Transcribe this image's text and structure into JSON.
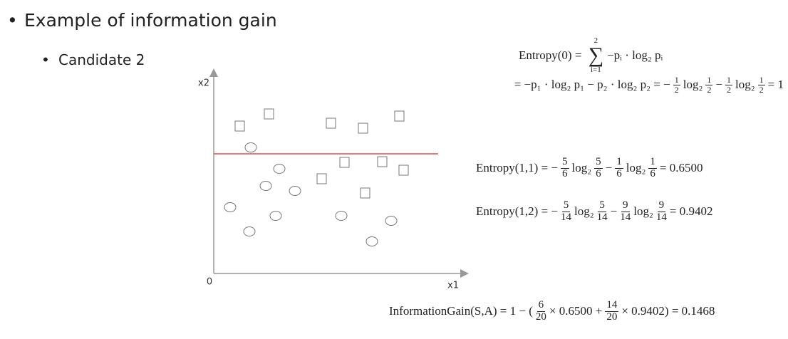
{
  "bullet": "Example of information gain",
  "sub_bullet": "Candidate 2",
  "plot": {
    "y_label": "x2",
    "x_label": "x1",
    "origin": "0"
  },
  "formulas": [
    {
      "parts": [
        "Entropy(0) = ",
        {
          "over": "∑",
          "top": "2",
          "bottom": "i=1"
        },
        "−pᵢ · log₂ pᵢ"
      ]
    },
    {
      "parts": [
        "= −p₁ · log₂ p₁ − p₂ · log₂ p₂ = −",
        {
          "num": "1",
          "den": "2"
        },
        "log₂",
        {
          "num": "1",
          "den": "2"
        },
        "−",
        {
          "num": "1",
          "den": "2"
        },
        "log₂",
        {
          "num": "1",
          "den": "2"
        },
        "= 1"
      ]
    },
    {
      "parts": [
        "Entropy(1,1) = −",
        {
          "num": "5",
          "den": "6"
        },
        "log₂",
        {
          "num": "5",
          "den": "6"
        },
        "−",
        {
          "num": "1",
          "den": "6"
        },
        "log₂",
        {
          "num": "1",
          "den": "6"
        },
        "= 0.6500"
      ]
    },
    {
      "parts": [
        "Entropy(1,2) = −",
        {
          "num": "5",
          "den": "14"
        },
        "log₂",
        {
          "num": "5",
          "den": "14"
        },
        "−",
        {
          "num": "9",
          "den": "14"
        },
        "log₂",
        {
          "num": "9",
          "den": "14"
        },
        "= 0.9402"
      ]
    },
    {
      "parts": [
        "InformationGain(S,A) = 1 − (",
        {
          "num": "6",
          "den": "20"
        },
        "× 0.6500 +",
        {
          "num": "14",
          "den": "20"
        },
        "× 0.9402) = 0.1468"
      ]
    }
  ]
}
